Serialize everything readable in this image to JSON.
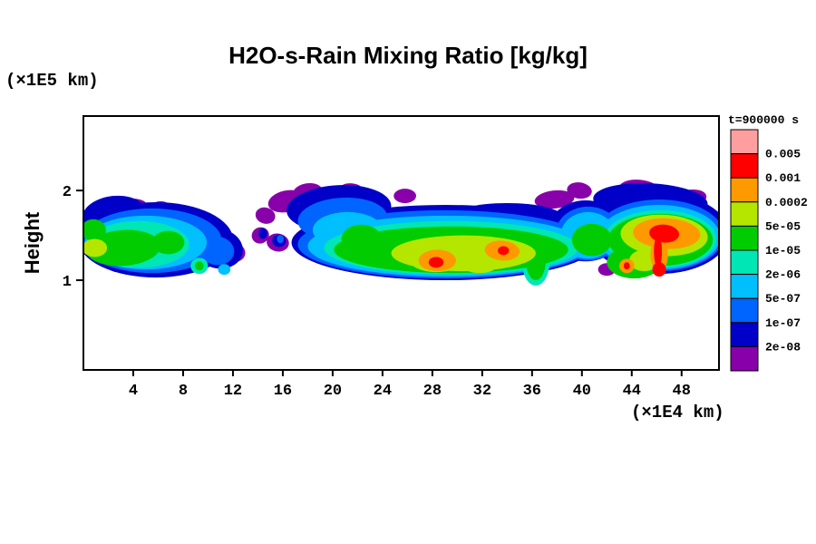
{
  "chart": {
    "title": "H2O-s-Rain Mixing Ratio [kg/kg]",
    "y_unit": "(×1E5 km)",
    "x_unit": "(×1E4 km)",
    "ylabel": "Height",
    "annotation": "t=900000 s"
  },
  "chart_data": {
    "type": "filled_contour",
    "title": "H2O-s-Rain Mixing Ratio [kg/kg]",
    "xlabel": "(×1E4 km)",
    "ylabel": "Height",
    "ylabel_unit": "(×1E5 km)",
    "time_annotation": "t=900000 s",
    "x_range": [
      0,
      51
    ],
    "y_range": [
      0,
      2.83
    ],
    "x_ticks": [
      4,
      8,
      12,
      16,
      20,
      24,
      28,
      32,
      36,
      40,
      44,
      48
    ],
    "y_ticks": [
      1,
      2
    ],
    "grid": false,
    "legend_position": "right",
    "levels": [
      "2e-08",
      "1e-07",
      "5e-07",
      "2e-06",
      "1e-05",
      "5e-05",
      "0.0002",
      "0.001",
      "0.005"
    ],
    "band_colors": [
      "#8800aa",
      "#0000c8",
      "#0064ff",
      "#00bfff",
      "#00e6b4",
      "#00cc00",
      "#b4e600",
      "#ff9900",
      "#ff0000",
      "#ff9e9e"
    ],
    "field_description": "Horizontal rain-cloud band between heights ~1.0 and ~2.1 (×1E5 km) spanning the full domain; weak mixing ratios (purple/blue) on edges, strong cores (orange/red up to ~0.001-0.005 kg/kg) near x=28, x=33-34 and x=44-48; thin wispy purple filaments near x=13-17.",
    "blobs": [
      [
        0,
        3.5,
        1.82,
        1.6,
        0.09,
        -5
      ],
      [
        0,
        6.2,
        1.8,
        0.9,
        0.08,
        0
      ],
      [
        0,
        11.8,
        1.32,
        1.2,
        0.12,
        12
      ],
      [
        1,
        5.8,
        1.45,
        6.2,
        0.42,
        0
      ],
      [
        1,
        2.5,
        1.72,
        2.6,
        0.22,
        -6
      ],
      [
        1,
        10.9,
        1.35,
        1.9,
        0.22,
        10
      ],
      [
        2,
        5.5,
        1.44,
        5.6,
        0.36,
        0
      ],
      [
        2,
        10.7,
        1.33,
        1.4,
        0.16,
        8
      ],
      [
        3,
        5.0,
        1.42,
        4.9,
        0.3,
        0
      ],
      [
        4,
        4.4,
        1.4,
        4.1,
        0.26,
        0
      ],
      [
        5,
        3.2,
        1.36,
        3.0,
        0.2,
        -4
      ],
      [
        5,
        6.8,
        1.42,
        1.3,
        0.13,
        0
      ],
      [
        5,
        0.8,
        1.56,
        1.0,
        0.12,
        0
      ],
      [
        6,
        0.9,
        1.36,
        1.0,
        0.1,
        0
      ],
      [
        4,
        9.3,
        1.16,
        0.7,
        0.09,
        0
      ],
      [
        5,
        9.3,
        1.16,
        0.35,
        0.05,
        0
      ],
      [
        3,
        11.3,
        1.12,
        0.5,
        0.06,
        0
      ],
      [
        0,
        16.3,
        1.88,
        1.5,
        0.12,
        -12
      ],
      [
        0,
        14.6,
        1.72,
        0.8,
        0.09,
        15
      ],
      [
        0,
        14.2,
        1.5,
        0.7,
        0.09,
        -20
      ],
      [
        0,
        15.6,
        1.42,
        0.9,
        0.1,
        10
      ],
      [
        1,
        15.7,
        1.44,
        0.55,
        0.07,
        10
      ],
      [
        1,
        14.4,
        1.52,
        0.35,
        0.06,
        0
      ],
      [
        2,
        15.8,
        1.46,
        0.28,
        0.045,
        0
      ],
      [
        0,
        18.0,
        1.98,
        1.2,
        0.1,
        -8
      ],
      [
        0,
        21.5,
        2.0,
        1.0,
        0.08,
        5
      ],
      [
        0,
        25.8,
        1.94,
        0.9,
        0.08,
        0
      ],
      [
        0,
        37.8,
        1.9,
        1.6,
        0.1,
        -6
      ],
      [
        0,
        39.8,
        2.0,
        1.0,
        0.09,
        8
      ],
      [
        1,
        20.5,
        1.8,
        4.2,
        0.26,
        -3
      ],
      [
        1,
        29.0,
        1.42,
        12.3,
        0.42,
        0
      ],
      [
        1,
        34.0,
        1.7,
        4.5,
        0.16,
        0
      ],
      [
        2,
        20.8,
        1.68,
        3.6,
        0.24,
        -3
      ],
      [
        2,
        29.0,
        1.4,
        11.8,
        0.38,
        0
      ],
      [
        3,
        29.2,
        1.38,
        11.2,
        0.34,
        0
      ],
      [
        3,
        21.2,
        1.56,
        2.8,
        0.2,
        0
      ],
      [
        4,
        29.5,
        1.36,
        10.2,
        0.3,
        0
      ],
      [
        5,
        29.5,
        1.34,
        9.4,
        0.26,
        0
      ],
      [
        5,
        22.3,
        1.46,
        1.6,
        0.16,
        0
      ],
      [
        6,
        30.5,
        1.3,
        5.8,
        0.2,
        0
      ],
      [
        6,
        28.3,
        1.24,
        2.2,
        0.15,
        0
      ],
      [
        7,
        28.4,
        1.22,
        1.5,
        0.12,
        0
      ],
      [
        7,
        33.6,
        1.33,
        1.4,
        0.11,
        5
      ],
      [
        8,
        28.3,
        1.2,
        0.6,
        0.06,
        0
      ],
      [
        8,
        33.7,
        1.33,
        0.45,
        0.05,
        0
      ],
      [
        6,
        31.8,
        1.18,
        1.5,
        0.1,
        0
      ],
      [
        5,
        36.3,
        1.22,
        0.8,
        0.22,
        0
      ],
      [
        4,
        36.3,
        1.2,
        1.1,
        0.26,
        0
      ],
      [
        1,
        40.3,
        1.55,
        3.0,
        0.34,
        0
      ],
      [
        2,
        40.5,
        1.52,
        2.6,
        0.3,
        0
      ],
      [
        3,
        40.5,
        1.5,
        2.2,
        0.26,
        0
      ],
      [
        5,
        40.8,
        1.45,
        1.6,
        0.18,
        0
      ],
      [
        0,
        44.6,
        2.02,
        1.6,
        0.1,
        5
      ],
      [
        0,
        48.8,
        1.92,
        1.2,
        0.09,
        -6
      ],
      [
        0,
        42.0,
        1.12,
        0.7,
        0.07,
        0
      ],
      [
        1,
        46.2,
        1.52,
        5.6,
        0.45,
        0
      ],
      [
        1,
        45.5,
        1.88,
        4.6,
        0.2,
        3
      ],
      [
        2,
        46.2,
        1.5,
        5.2,
        0.4,
        0
      ],
      [
        3,
        46.2,
        1.48,
        4.9,
        0.36,
        0
      ],
      [
        4,
        46.3,
        1.46,
        4.5,
        0.32,
        0
      ],
      [
        5,
        46.3,
        1.45,
        4.2,
        0.29,
        0
      ],
      [
        5,
        44.2,
        1.2,
        2.2,
        0.18,
        0
      ],
      [
        6,
        46.6,
        1.5,
        3.5,
        0.23,
        3
      ],
      [
        6,
        45.0,
        1.22,
        1.2,
        0.12,
        0
      ],
      [
        7,
        46.8,
        1.52,
        2.7,
        0.17,
        3
      ],
      [
        7,
        46.2,
        1.28,
        0.7,
        0.18,
        0
      ],
      [
        7,
        43.6,
        1.16,
        0.6,
        0.08,
        0
      ],
      [
        8,
        46.6,
        1.52,
        1.2,
        0.1,
        5
      ],
      [
        8,
        46.1,
        1.32,
        0.32,
        0.18,
        0
      ],
      [
        8,
        46.2,
        1.12,
        0.55,
        0.08,
        0
      ],
      [
        8,
        43.6,
        1.16,
        0.25,
        0.04,
        0
      ]
    ]
  }
}
